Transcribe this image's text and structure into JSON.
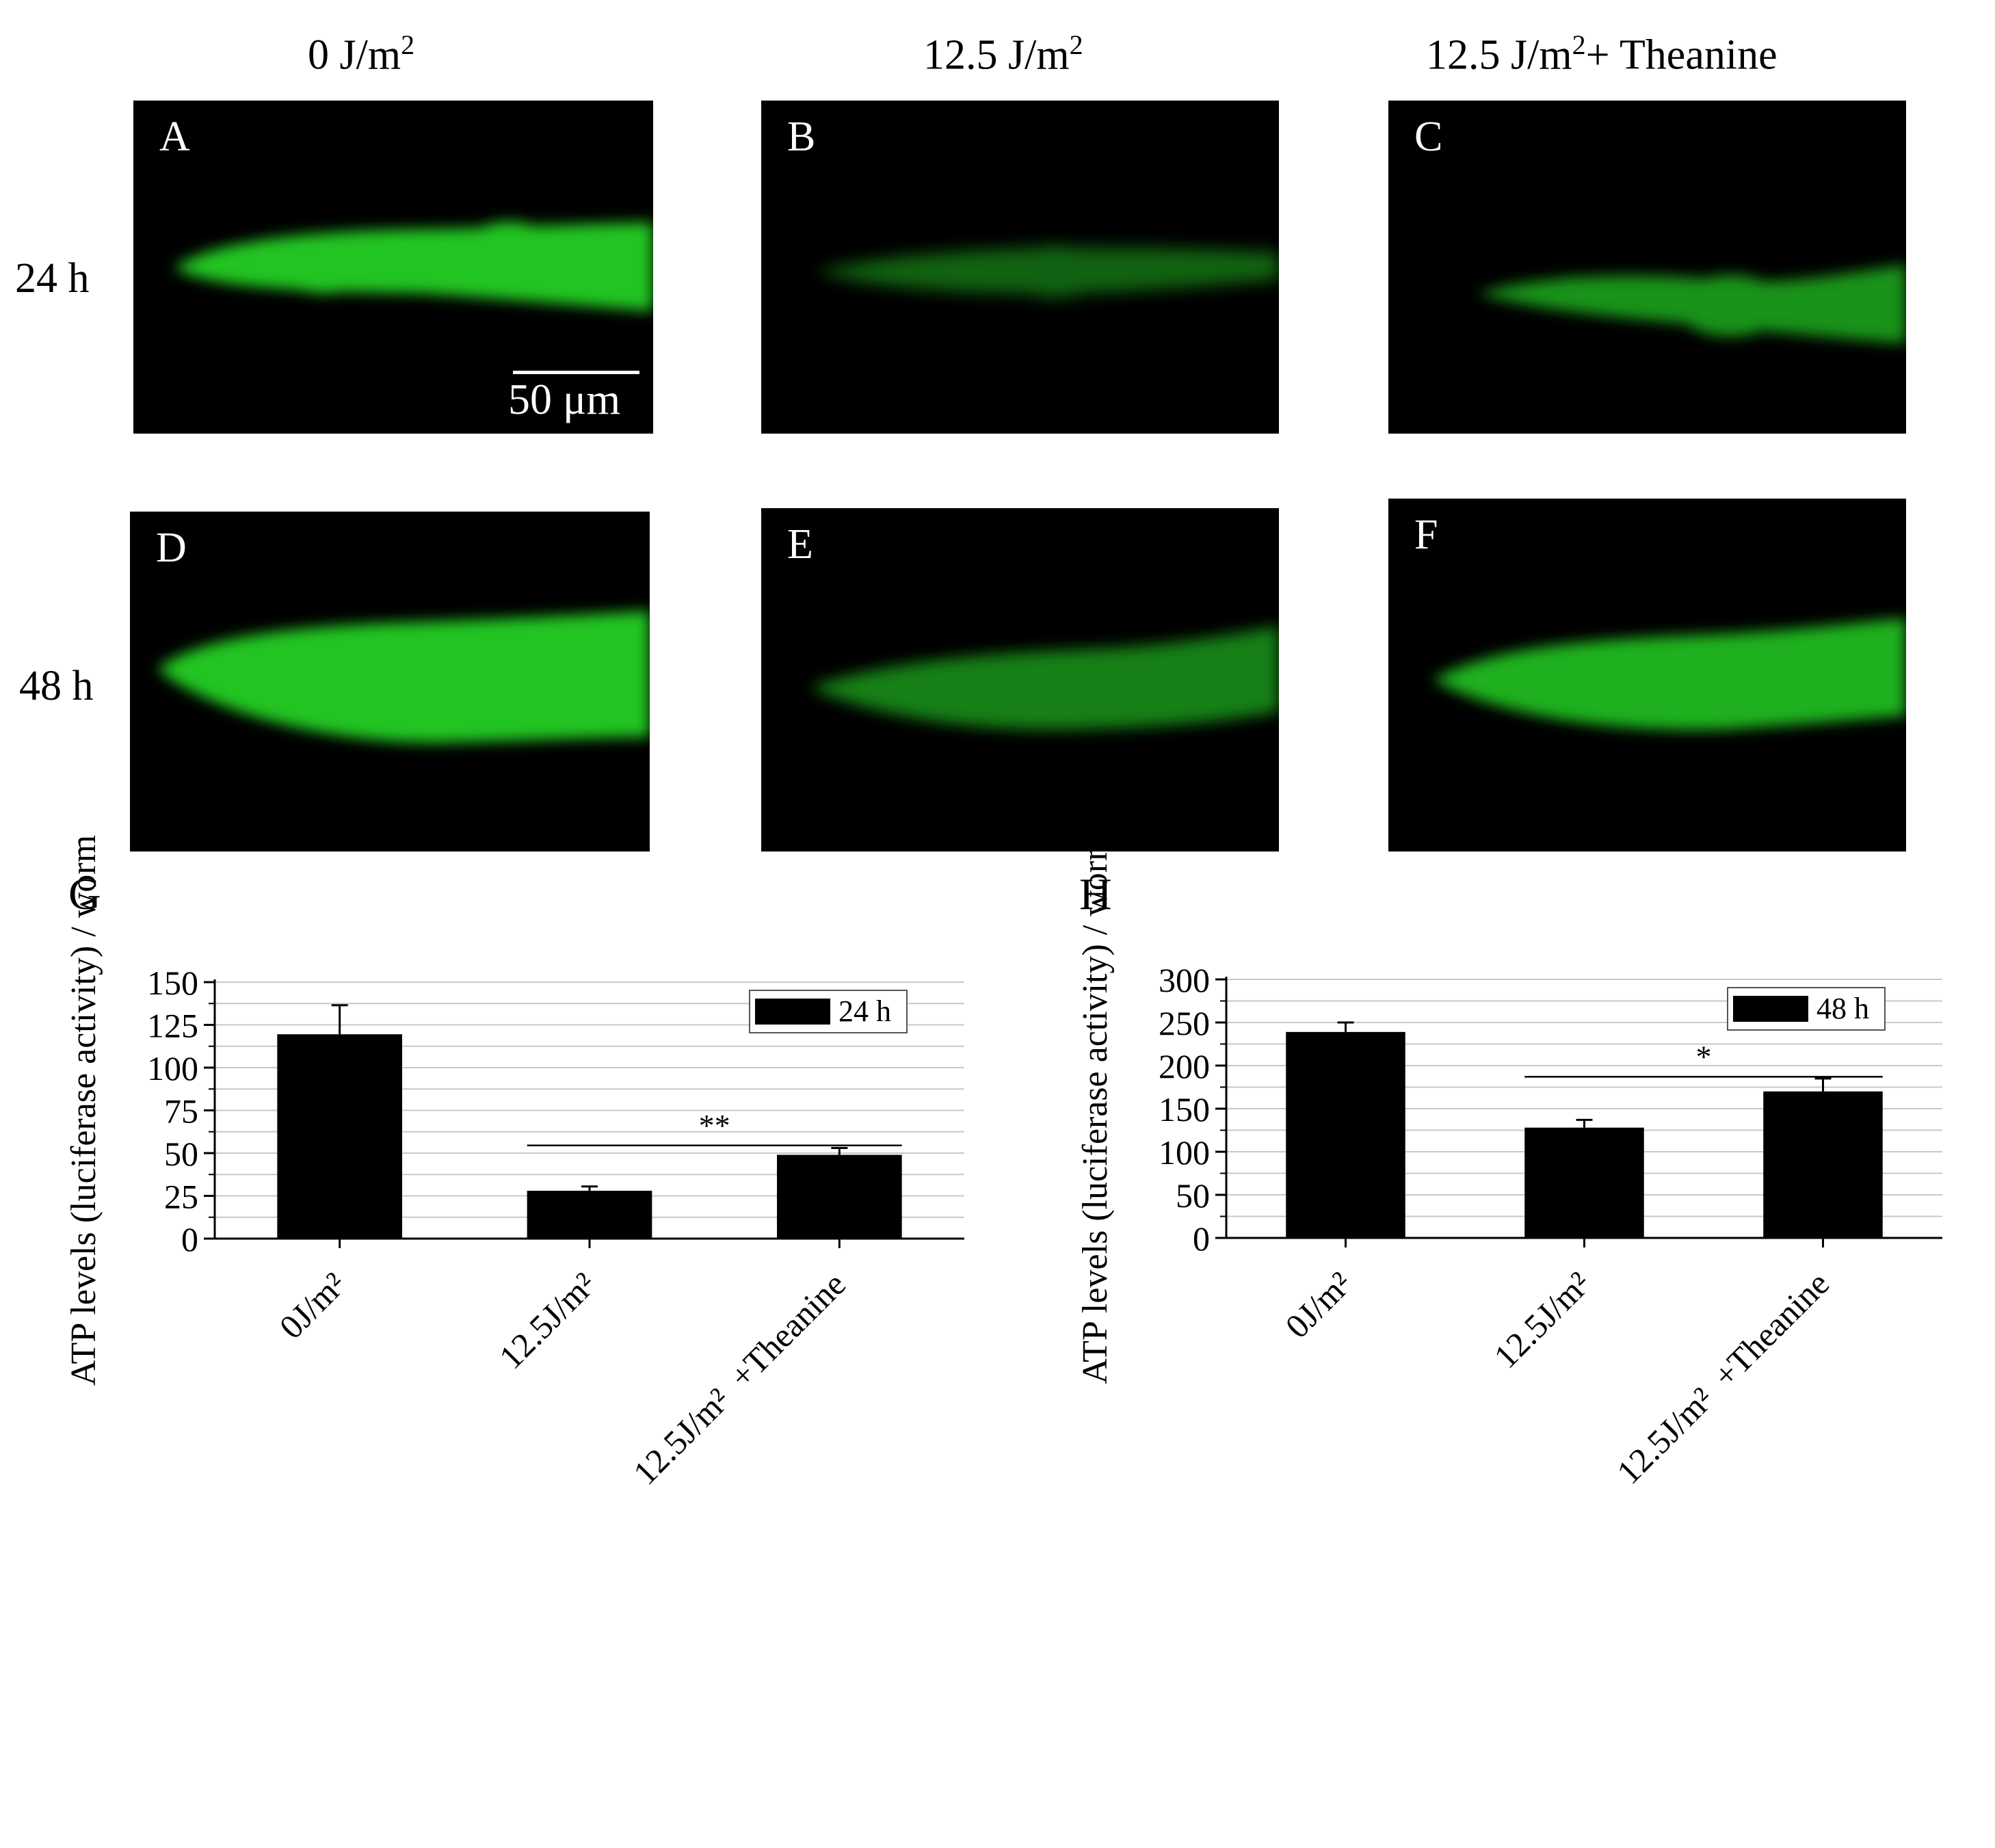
{
  "figure": {
    "columns": [
      {
        "base": "0 J/m",
        "sup": "2",
        "suffix": ""
      },
      {
        "base": "12.5 J/m",
        "sup": "2",
        "suffix": ""
      },
      {
        "base": "12.5 J/m",
        "sup": "2",
        "suffix": "+ Theanine"
      }
    ],
    "rows": [
      "24 h",
      "48 h"
    ],
    "panels": [
      {
        "letter": "A",
        "brightness": 1.0
      },
      {
        "letter": "B",
        "brightness": 0.5
      },
      {
        "letter": "C",
        "brightness": 0.75
      },
      {
        "letter": "D",
        "brightness": 1.0
      },
      {
        "letter": "E",
        "brightness": 0.65
      },
      {
        "letter": "F",
        "brightness": 0.9
      }
    ],
    "scale_bar": "50 μm",
    "fluorescence_color": "#22c422"
  },
  "chart_data": [
    {
      "panel": "G",
      "type": "bar",
      "ylabel": "ATP levels (luciferase activity) / worm",
      "categories": [
        "0J/m²",
        "12.5J/m²",
        "12.5J/m²  +Theanine"
      ],
      "ylim": [
        0,
        150
      ],
      "yticks": [
        0,
        25,
        50,
        75,
        100,
        125,
        150
      ],
      "grid": true,
      "legend": {
        "label": "24 h",
        "position": "top-right"
      },
      "series": [
        {
          "name": "24 h",
          "values": [
            119.5,
            28,
            49
          ],
          "errors": [
            17,
            2.5,
            4
          ],
          "color": "#000000"
        }
      ],
      "significance": {
        "label": "**",
        "from": 1,
        "to": 2,
        "y": 54.5
      }
    },
    {
      "panel": "H",
      "type": "bar",
      "ylabel": "ATP levels (luciferase activity) / worm",
      "categories": [
        "0J/m²",
        "12.5J/m²",
        "12.5J/m²  +Theanine"
      ],
      "ylim": [
        0,
        300
      ],
      "yticks": [
        0,
        50,
        100,
        150,
        200,
        250,
        300
      ],
      "grid": true,
      "legend": {
        "label": "48 h",
        "position": "top-right"
      },
      "series": [
        {
          "name": "48 h",
          "values": [
            239,
            128,
            170
          ],
          "errors": [
            11,
            9,
            15
          ],
          "color": "#000000"
        }
      ],
      "significance": {
        "label": "*",
        "from": 1,
        "to": 2,
        "y": 187
      }
    }
  ]
}
